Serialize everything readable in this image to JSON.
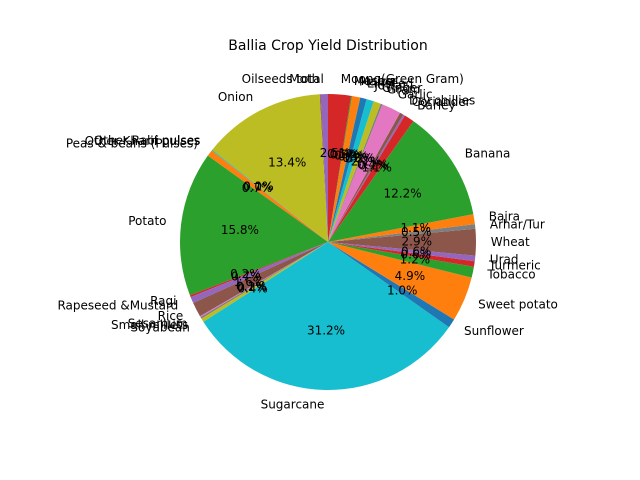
{
  "chart_data": {
    "type": "pie",
    "title": "Ballia Crop Yield Distribution",
    "start_angle_deg": 90,
    "direction": "counterclockwise",
    "slices": [
      {
        "label": "Oilseeds total",
        "value": 0.8,
        "pct": "",
        "color": "#9467bd"
      },
      {
        "label": "Moth",
        "value": 0.1,
        "pct": "",
        "color": "#8c564b"
      },
      {
        "label": "Onion",
        "value": 13.4,
        "pct": "13.4%",
        "color": "#bcbd22"
      },
      {
        "label": "Other Rabi pulses",
        "value": 0.1,
        "pct": "0.1%",
        "color": "#17becf"
      },
      {
        "label": "Other Kharif pulses",
        "value": 0.0,
        "pct": "0.0%",
        "color": "#1f77b4"
      },
      {
        "label": "Peas & beans (Pulses)",
        "value": 0.7,
        "pct": "0.7%",
        "color": "#ff7f0e"
      },
      {
        "label": "Potato",
        "value": 15.8,
        "pct": "15.8%",
        "color": "#2ca02c"
      },
      {
        "label": "Ragi",
        "value": 0.2,
        "pct": "0.2%",
        "color": "#d62728"
      },
      {
        "label": "Rapeseed &Mustard",
        "value": 0.7,
        "pct": "0.7%",
        "color": "#9467bd"
      },
      {
        "label": "Rice",
        "value": 1.6,
        "pct": "1.6%",
        "color": "#8c564b"
      },
      {
        "label": "Sesamum",
        "value": 0.1,
        "pct": "0.1%",
        "color": "#e377c2"
      },
      {
        "label": "Small millets",
        "value": 0.2,
        "pct": "0.2%",
        "color": "#7f7f7f"
      },
      {
        "label": "Soyabean",
        "value": 0.4,
        "pct": "0.4%",
        "color": "#bcbd22"
      },
      {
        "label": "Sugarcane",
        "value": 31.2,
        "pct": "31.2%",
        "color": "#17becf"
      },
      {
        "label": "Sunflower",
        "value": 1.0,
        "pct": "1.0%",
        "color": "#1f77b4"
      },
      {
        "label": "Sweet potato",
        "value": 4.9,
        "pct": "4.9%",
        "color": "#ff7f0e"
      },
      {
        "label": "Tobacco",
        "value": 1.2,
        "pct": "1.2%",
        "color": "#2ca02c"
      },
      {
        "label": "Turmeric",
        "value": 0.6,
        "pct": "0.6%",
        "color": "#d62728"
      },
      {
        "label": "Urad",
        "value": 0.6,
        "pct": "0.6%",
        "color": "#9467bd"
      },
      {
        "label": "Wheat",
        "value": 2.9,
        "pct": "2.9%",
        "color": "#8c564b"
      },
      {
        "label": "Arhar/Tur",
        "value": 0.5,
        "pct": "0.5%",
        "color": "#7f7f7f"
      },
      {
        "label": "Bajra",
        "value": 1.1,
        "pct": "1.1%",
        "color": "#ff7f0e"
      },
      {
        "label": "Banana",
        "value": 12.2,
        "pct": "12.2%",
        "color": "#2ca02c"
      },
      {
        "label": "Barley",
        "value": 1.1,
        "pct": "1.1%",
        "color": "#d62728"
      },
      {
        "label": "Coriander",
        "value": 0.2,
        "pct": "0.2%",
        "color": "#9467bd"
      },
      {
        "label": "Dry chillies",
        "value": 0.4,
        "pct": "0.4%",
        "color": "#8c564b"
      },
      {
        "label": "Garlic",
        "value": 2.1,
        "pct": "2.1%",
        "color": "#e377c2"
      },
      {
        "label": "Gram",
        "value": 0.2,
        "pct": "0.2%",
        "color": "#7f7f7f"
      },
      {
        "label": "Ginger",
        "value": 0.8,
        "pct": "0.8%",
        "color": "#bcbd22"
      },
      {
        "label": "Jowar",
        "value": 0.8,
        "pct": "0.8%",
        "color": "#17becf"
      },
      {
        "label": "Linseed",
        "value": 0.7,
        "pct": "0.7%",
        "color": "#1f77b4"
      },
      {
        "label": "Maize",
        "value": 0.9,
        "pct": "0.9%",
        "color": "#ff7f0e"
      },
      {
        "label": "Masoor",
        "value": 0.1,
        "pct": "0.1%",
        "color": "#2ca02c"
      },
      {
        "label": "Moong(Green Gram)",
        "value": 2.5,
        "pct": "2.5%",
        "color": "#d62728"
      }
    ]
  }
}
